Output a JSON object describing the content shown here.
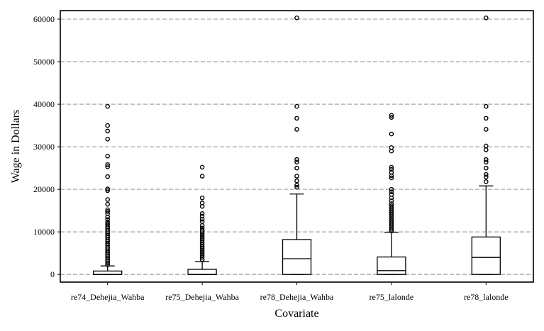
{
  "chart_data": {
    "type": "box",
    "xlabel": "Covariate",
    "ylabel": "Wage in Dollars",
    "ylim": [
      -1800,
      62000
    ],
    "yticks": [
      0,
      10000,
      20000,
      30000,
      40000,
      50000,
      60000
    ],
    "grid": {
      "axis": "y",
      "style": "dashed",
      "color": "#aaaaaa"
    },
    "legend": "none",
    "categories": [
      "re74_Dehejia_Wahba",
      "re75_Dehejia_Wahba",
      "re78_Dehejia_Wahba",
      "re75_lalonde",
      "re78_lalonde"
    ],
    "boxes": [
      {
        "name": "re74_Dehejia_Wahba",
        "whisker_low": 0,
        "q1": 0,
        "median": 0,
        "q3": 800,
        "whisker_high": 2000,
        "outliers": [
          39500,
          35000,
          33700,
          31800,
          27800,
          25800,
          25300,
          23000,
          20100,
          19700,
          17600,
          16500,
          15200,
          14800,
          14300,
          13500,
          12900,
          12300,
          11800,
          11300,
          10900,
          10400,
          10000,
          9600,
          9100,
          8700,
          8200,
          7800,
          7300,
          6900,
          6400,
          6000,
          5500,
          5100,
          4700,
          4300,
          3900,
          3500,
          3100,
          2700,
          2300
        ]
      },
      {
        "name": "re75_Dehejia_Wahba",
        "whisker_low": 0,
        "q1": 0,
        "median": 0,
        "q3": 1200,
        "whisker_high": 3000,
        "outliers": [
          25200,
          23100,
          18000,
          16800,
          16000,
          14300,
          13700,
          13000,
          12400,
          11500,
          10900,
          10400,
          10000,
          9500,
          9000,
          8500,
          8000,
          7500,
          7000,
          6500,
          6000,
          5500,
          5000,
          4500,
          4000,
          3500
        ]
      },
      {
        "name": "re78_Dehejia_Wahba",
        "whisker_low": 0,
        "q1": 0,
        "median": 3700,
        "q3": 8200,
        "whisker_high": 18900,
        "outliers": [
          60300,
          39500,
          36700,
          34100,
          27000,
          26400,
          25000,
          23100,
          22000,
          21000,
          20500
        ]
      },
      {
        "name": "re75_lalonde",
        "whisker_low": 0,
        "q1": 0,
        "median": 900,
        "q3": 4100,
        "whisker_high": 9900,
        "outliers": [
          37400,
          36900,
          33000,
          29800,
          29000,
          25200,
          24700,
          24000,
          23200,
          22700,
          20000,
          19400,
          18800,
          18000,
          17300,
          16600,
          16100,
          15600,
          15100,
          14600,
          14100,
          13600,
          13100,
          12600,
          12100,
          11600,
          11100,
          10600,
          10200
        ]
      },
      {
        "name": "re78_lalonde",
        "whisker_low": 0,
        "q1": 0,
        "median": 4000,
        "q3": 8800,
        "whisker_high": 20800,
        "outliers": [
          60300,
          39500,
          36700,
          34100,
          30200,
          29300,
          27000,
          26400,
          25000,
          23500,
          22900,
          21800
        ]
      }
    ]
  }
}
